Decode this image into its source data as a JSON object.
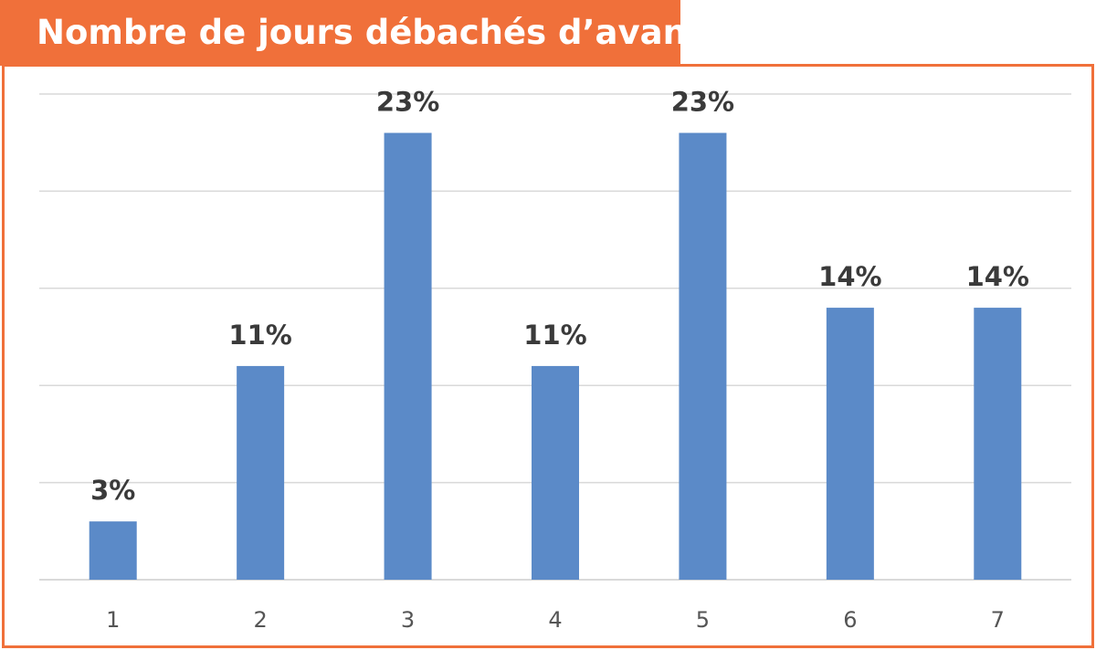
{
  "title": "Nombre de jours débachés d’avance",
  "colors": {
    "accent": "#f0703a",
    "bar": "#5b8ac8",
    "gridline": "#d9d9d9"
  },
  "chart_data": {
    "type": "bar",
    "title": "Nombre de jours débachés d’avance",
    "xlabel": "",
    "ylabel": "",
    "categories": [
      "1",
      "2",
      "3",
      "4",
      "5",
      "6",
      "7"
    ],
    "values": [
      3,
      11,
      23,
      11,
      23,
      14,
      14
    ],
    "data_labels": [
      "3%",
      "11%",
      "23%",
      "11%",
      "23%",
      "14%",
      "14%"
    ],
    "unit": "%",
    "ylim": [
      0,
      25
    ],
    "grid": true,
    "legend": "none"
  }
}
